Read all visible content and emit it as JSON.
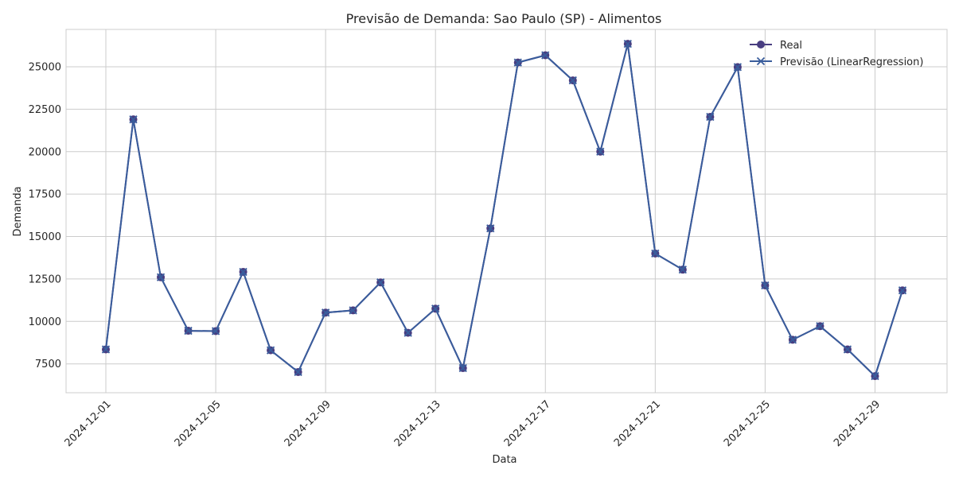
{
  "chart_data": {
    "type": "line",
    "title": "Previsão de Demanda: Sao Paulo (SP) - Alimentos",
    "xlabel": "Data",
    "ylabel": "Demanda",
    "x": [
      "2024-12-01",
      "2024-12-02",
      "2024-12-03",
      "2024-12-04",
      "2024-12-05",
      "2024-12-06",
      "2024-12-07",
      "2024-12-08",
      "2024-12-09",
      "2024-12-10",
      "2024-12-11",
      "2024-12-12",
      "2024-12-13",
      "2024-12-14",
      "2024-12-15",
      "2024-12-16",
      "2024-12-17",
      "2024-12-18",
      "2024-12-19",
      "2024-12-20",
      "2024-12-21",
      "2024-12-22",
      "2024-12-23",
      "2024-12-24",
      "2024-12-25",
      "2024-12-26",
      "2024-12-27",
      "2024-12-28",
      "2024-12-29",
      "2024-12-30"
    ],
    "x_ticks": [
      "2024-12-01",
      "2024-12-05",
      "2024-12-09",
      "2024-12-13",
      "2024-12-17",
      "2024-12-21",
      "2024-12-25",
      "2024-12-29"
    ],
    "y_ticks": [
      7500,
      10000,
      12500,
      15000,
      17500,
      20000,
      22500,
      25000
    ],
    "ylim": [
      5800,
      27200
    ],
    "grid": true,
    "legend_position": "top-right",
    "series": [
      {
        "name": "Real",
        "marker": "circle",
        "color": "#483d80",
        "values": [
          8350,
          21900,
          12600,
          9450,
          9430,
          12920,
          8300,
          7020,
          10520,
          10650,
          12300,
          9330,
          10750,
          7250,
          15480,
          25250,
          25680,
          24200,
          20000,
          26350,
          14000,
          13050,
          22050,
          24980,
          12120,
          8920,
          9720,
          8350,
          6780,
          11830
        ]
      },
      {
        "name": "Previsão (LinearRegression)",
        "marker": "x",
        "color": "#3a5d9c",
        "values": [
          8350,
          21900,
          12600,
          9450,
          9430,
          12920,
          8300,
          7020,
          10520,
          10650,
          12300,
          9330,
          10750,
          7250,
          15480,
          25250,
          25680,
          24200,
          20000,
          26350,
          14000,
          13050,
          22050,
          24980,
          12120,
          8920,
          9720,
          8350,
          6780,
          11830
        ]
      }
    ]
  }
}
